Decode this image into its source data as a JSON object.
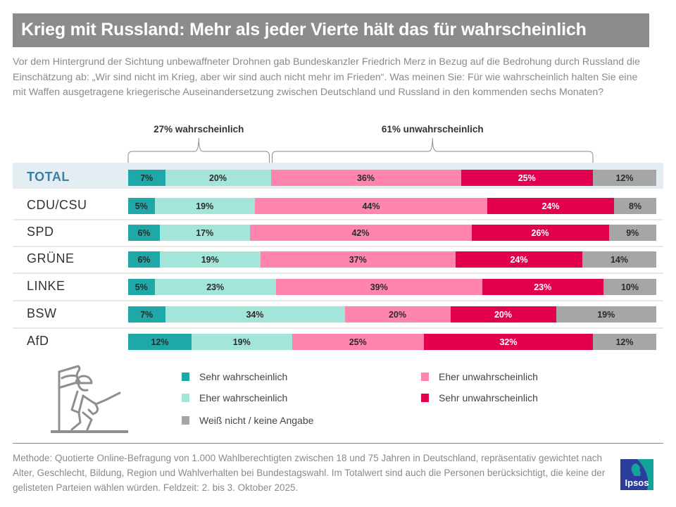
{
  "header": {
    "title": "Krieg mit Russland: Mehr als jeder Vierte hält das für wahrscheinlich",
    "subtitle": "Vor dem Hintergrund der Sichtung unbewaffneter Drohnen gab Bundeskanzler Friedrich Merz in Bezug auf die Bedrohung durch Russland die Einschätzung ab: „Wir sind nicht im Krieg, aber wir sind auch nicht mehr im Frieden“. Was meinen Sie: Für wie wahrscheinlich halten Sie eine mit Waffen ausgetragene kriegerische Auseinandersetzung zwischen Deutschland und Russland in den kommenden sechs Monaten?"
  },
  "chart_data": {
    "type": "bar",
    "orientation": "horizontal",
    "stacked": true,
    "unit": "%",
    "title": "Krieg mit Russland: Mehr als jeder Vierte hält das für wahrscheinlich",
    "xlim": [
      0,
      100
    ],
    "categories": [
      "TOTAL",
      "CDU/CSU",
      "SPD",
      "GRÜNE",
      "LINKE",
      "BSW",
      "AfD"
    ],
    "series": [
      {
        "name": "Sehr wahrscheinlich",
        "color": "#1fa8a8",
        "label_color": "#2b2b2b",
        "values": [
          7,
          5,
          6,
          6,
          5,
          7,
          12
        ]
      },
      {
        "name": "Eher wahrscheinlich",
        "color": "#a3e5d8",
        "label_color": "#2b2b2b",
        "values": [
          20,
          19,
          17,
          19,
          23,
          34,
          19
        ]
      },
      {
        "name": "Eher unwahrscheinlich",
        "color": "#ff85af",
        "label_color": "#2b2b2b",
        "values": [
          36,
          44,
          42,
          37,
          39,
          20,
          25
        ]
      },
      {
        "name": "Sehr unwahrscheinlich",
        "color": "#e3004f",
        "label_color": "#ffffff",
        "values": [
          25,
          24,
          26,
          24,
          23,
          20,
          32
        ]
      },
      {
        "name": "Weiß nicht / keine Angabe",
        "color": "#a6a6a6",
        "label_color": "#2b2b2b",
        "values": [
          12,
          8,
          9,
          14,
          10,
          19,
          12
        ]
      }
    ],
    "annotations": [
      {
        "text": "27% wahrscheinlich",
        "applies_to": "TOTAL",
        "spans_series": [
          "Sehr wahrscheinlich",
          "Eher wahrscheinlich"
        ]
      },
      {
        "text": "61% unwahrscheinlich",
        "applies_to": "TOTAL",
        "spans_series": [
          "Eher unwahrscheinlich",
          "Sehr unwahrscheinlich"
        ]
      }
    ],
    "highlighted_category": "TOTAL",
    "legend_position": "bottom",
    "grid": false
  },
  "legend": {
    "items": [
      {
        "label": "Sehr wahrscheinlich",
        "color": "#1fa8a8"
      },
      {
        "label": "Eher wahrscheinlich",
        "color": "#a3e5d8"
      },
      {
        "label": "Weiß nicht / keine Angabe",
        "color": "#a6a6a6"
      },
      {
        "label": "Eher unwahrscheinlich",
        "color": "#ff85af"
      },
      {
        "label": "Sehr unwahrscheinlich",
        "color": "#e3004f"
      }
    ]
  },
  "footer": {
    "method": "Methode: Quotierte Online-Befragung von 1.000 Wahlberechtigten zwischen 18 und 75 Jahren in Deutschland, repräsentativ gewichtet nach Alter, Geschlecht, Bildung, Region und Wahlverhalten bei Bundestagswahl. Im Totalwert sind auch die Personen berücksichtigt, die keine der gelisteten Parteien wählen würden. Feldzeit: 2. bis 3. Oktober 2025.",
    "logo_text": "Ipsos"
  },
  "colors": {
    "title_bar": "#8c8c8c",
    "total_band": "#e4eef2",
    "logo_blue": "#2a3d9c",
    "logo_teal": "#14a39a"
  },
  "icons": {
    "illustration": "soldier-with-flag-icon",
    "logo": "ipsos-logo"
  }
}
